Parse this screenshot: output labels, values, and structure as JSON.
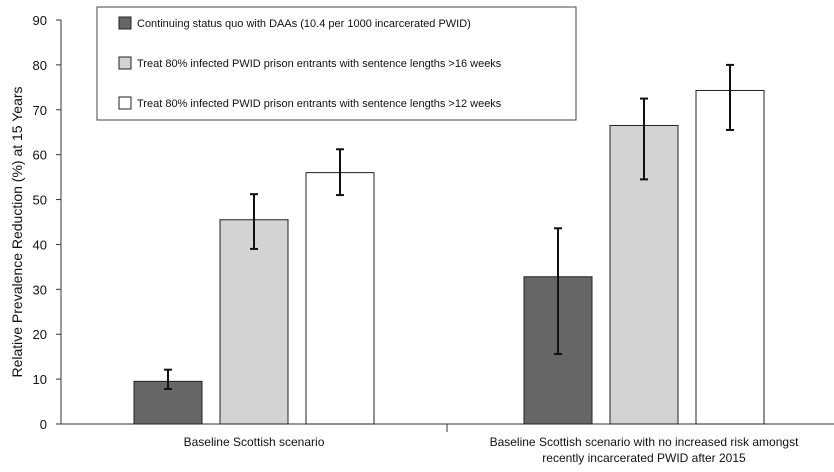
{
  "chart_data": {
    "type": "bar",
    "title": "",
    "xlabel": "",
    "ylabel": "Relative Prevalence Reduction (%) at 15 Years",
    "ylim": [
      0,
      90
    ],
    "yticks": [
      0,
      10,
      20,
      30,
      40,
      50,
      60,
      70,
      80,
      90
    ],
    "grid": false,
    "legend_position": "top-left",
    "categories": [
      [
        "Baseline Scottish scenario"
      ],
      [
        "Baseline Scottish scenario with no increased risk amongst",
        "recently incarcerated PWID after 2015"
      ]
    ],
    "series": [
      {
        "name": "Continuing status quo with DAAs (10.4 per 1000 incarcerated  PWID)",
        "color": "#666666",
        "values": [
          9.5,
          32.8
        ],
        "error_low": [
          7.8,
          15.6
        ],
        "error_high": [
          12.1,
          43.6
        ]
      },
      {
        "name": "Treat 80% infected PWID prison entrants with sentence lengths >16 weeks",
        "color": "#d3d3d3",
        "values": [
          45.5,
          66.5
        ],
        "error_low": [
          39.0,
          54.5
        ],
        "error_high": [
          51.2,
          72.5
        ]
      },
      {
        "name": "Treat 80% infected PWID prison entrants with sentence lengths >12 weeks",
        "color": "#ffffff",
        "values": [
          56.0,
          74.3
        ],
        "error_low": [
          51.0,
          65.5
        ],
        "error_high": [
          61.2,
          80.0
        ]
      }
    ]
  }
}
